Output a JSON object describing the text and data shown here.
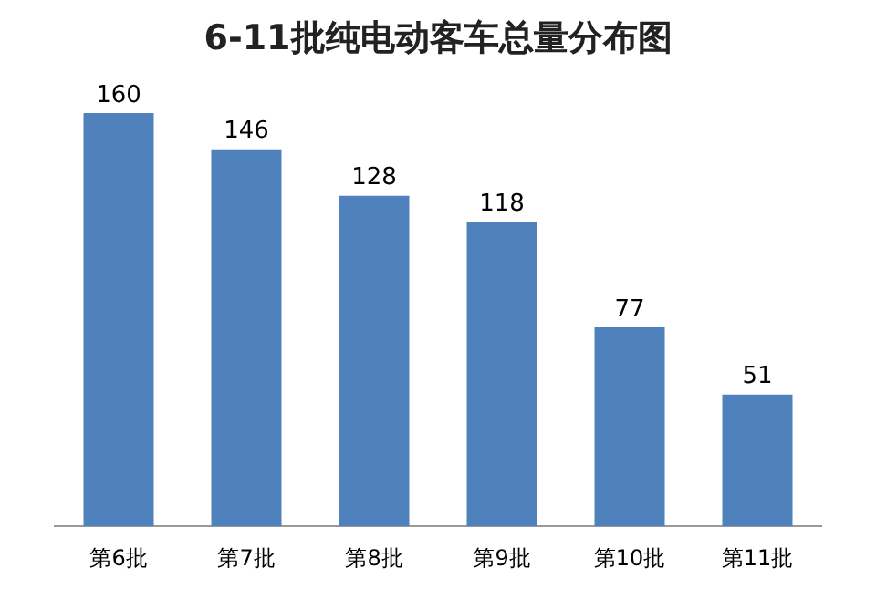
{
  "chart_data": {
    "type": "bar",
    "title": "6-11批纯电动客车总量分布图",
    "categories": [
      "第6批",
      "第7批",
      "第8批",
      "第9批",
      "第10批",
      "第11批"
    ],
    "values": [
      160,
      146,
      128,
      118,
      77,
      51
    ],
    "color": "#4f81bd",
    "data_labels": true
  }
}
